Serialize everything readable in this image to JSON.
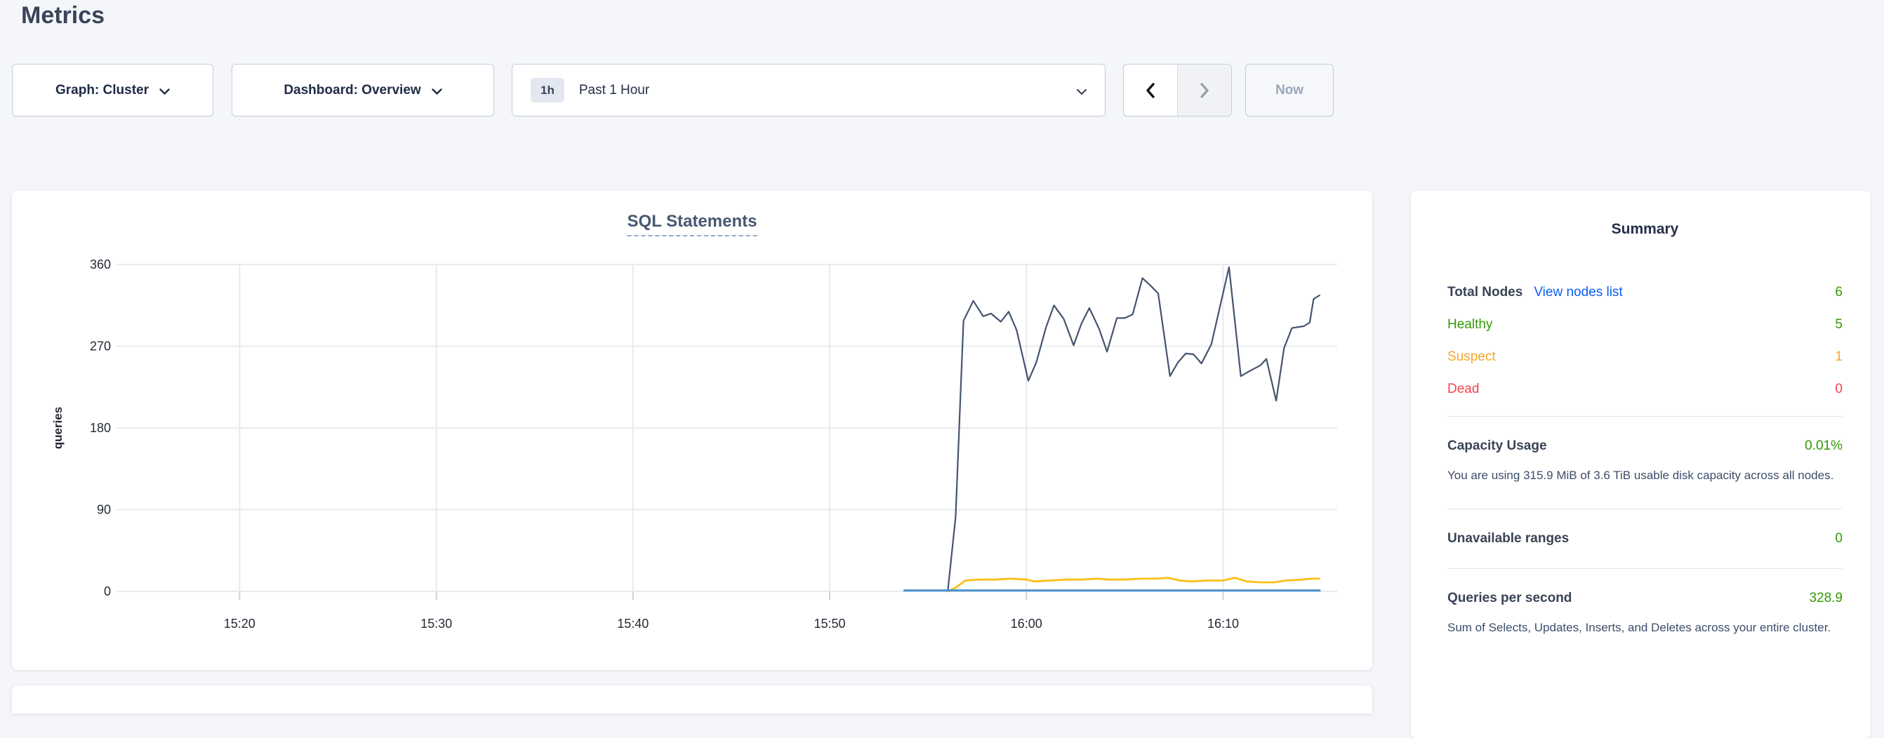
{
  "page": {
    "title": "Metrics"
  },
  "toolbar": {
    "graph_dropdown": {
      "text": "Graph: Cluster"
    },
    "dashboard_dropdown": {
      "text": "Dashboard: Overview"
    },
    "time_picker": {
      "badge": "1h",
      "label": "Past 1 Hour"
    },
    "now_label": "Now"
  },
  "chart_data": {
    "type": "line",
    "title": "SQL Statements",
    "ylabel": "queries",
    "ylim": [
      0,
      360
    ],
    "y_ticks": [
      0,
      90,
      180,
      270,
      360
    ],
    "x_domain_minutes": [
      14.1,
      75.8
    ],
    "x_ticks": [
      {
        "minutes": 20,
        "label": "15:20"
      },
      {
        "minutes": 30,
        "label": "15:30"
      },
      {
        "minutes": 40,
        "label": "15:40"
      },
      {
        "minutes": 50,
        "label": "15:50"
      },
      {
        "minutes": 60,
        "label": "16:00"
      },
      {
        "minutes": 70,
        "label": "16:10"
      }
    ],
    "grid": true,
    "legend": "none",
    "series": [
      {
        "name": "dark-line",
        "color": "#45546e",
        "width": 2.2,
        "points": [
          [
            56.0,
            0
          ],
          [
            56.4,
            82
          ],
          [
            56.8,
            298
          ],
          [
            57.3,
            320
          ],
          [
            57.8,
            303
          ],
          [
            58.2,
            306
          ],
          [
            58.7,
            297
          ],
          [
            59.1,
            308
          ],
          [
            59.5,
            288
          ],
          [
            60.1,
            232
          ],
          [
            60.5,
            252
          ],
          [
            61.0,
            291
          ],
          [
            61.4,
            315
          ],
          [
            61.9,
            300
          ],
          [
            62.4,
            271
          ],
          [
            62.8,
            295
          ],
          [
            63.2,
            312
          ],
          [
            63.7,
            289
          ],
          [
            64.1,
            264
          ],
          [
            64.6,
            301
          ],
          [
            65.0,
            301
          ],
          [
            65.4,
            305
          ],
          [
            65.9,
            345
          ],
          [
            66.3,
            337
          ],
          [
            66.7,
            328
          ],
          [
            67.3,
            237
          ],
          [
            67.7,
            252
          ],
          [
            68.1,
            262
          ],
          [
            68.5,
            261
          ],
          [
            68.9,
            251
          ],
          [
            69.4,
            272
          ],
          [
            70.3,
            357
          ],
          [
            70.9,
            237
          ],
          [
            71.3,
            242
          ],
          [
            71.9,
            249
          ],
          [
            72.2,
            256
          ],
          [
            72.7,
            210
          ],
          [
            73.1,
            268
          ],
          [
            73.5,
            290
          ],
          [
            74.1,
            292
          ],
          [
            74.4,
            296
          ],
          [
            74.6,
            322
          ],
          [
            74.9,
            326
          ]
        ]
      },
      {
        "name": "yellow-line",
        "color": "#fdbf17",
        "width": 2.8,
        "points": [
          [
            56.0,
            0
          ],
          [
            56.4,
            4
          ],
          [
            56.9,
            12
          ],
          [
            57.6,
            13
          ],
          [
            58.4,
            13
          ],
          [
            59.2,
            14
          ],
          [
            60.0,
            13
          ],
          [
            60.4,
            11
          ],
          [
            61.2,
            12
          ],
          [
            62.0,
            13
          ],
          [
            62.8,
            13
          ],
          [
            63.6,
            14
          ],
          [
            64.2,
            13
          ],
          [
            65.0,
            13
          ],
          [
            65.8,
            14
          ],
          [
            66.6,
            14
          ],
          [
            67.2,
            15
          ],
          [
            67.8,
            12
          ],
          [
            68.4,
            11
          ],
          [
            69.2,
            12
          ],
          [
            70.0,
            12
          ],
          [
            70.6,
            15
          ],
          [
            71.2,
            11
          ],
          [
            71.9,
            10
          ],
          [
            72.6,
            10
          ],
          [
            73.2,
            12
          ],
          [
            74.0,
            13
          ],
          [
            74.5,
            14
          ],
          [
            74.9,
            14
          ]
        ]
      },
      {
        "name": "blue-line",
        "color": "#4e93ce",
        "width": 3.2,
        "points": [
          [
            53.8,
            1
          ],
          [
            74.9,
            1
          ]
        ]
      }
    ]
  },
  "summary": {
    "title": "Summary",
    "total_nodes": {
      "label": "Total Nodes",
      "link": "View nodes list",
      "value": "6"
    },
    "statuses": [
      {
        "label": "Healthy",
        "value": "5"
      },
      {
        "label": "Suspect",
        "value": "1"
      },
      {
        "label": "Dead",
        "value": "0"
      }
    ],
    "capacity": {
      "label": "Capacity Usage",
      "value": "0.01%",
      "description": "You are using 315.9 MiB of 3.6 TiB usable disk capacity across all nodes."
    },
    "unavailable_ranges": {
      "label": "Unavailable ranges",
      "value": "0"
    },
    "qps": {
      "label": "Queries per second",
      "value": "328.9",
      "description": "Sum of Selects, Updates, Inserts, and Deletes across your entire cluster."
    }
  },
  "colors": {
    "accent_green": "#339904",
    "link_blue": "#0b5dee",
    "healthy": "#339904",
    "suspect": "#f7a42c",
    "dead": "#f2434d"
  }
}
